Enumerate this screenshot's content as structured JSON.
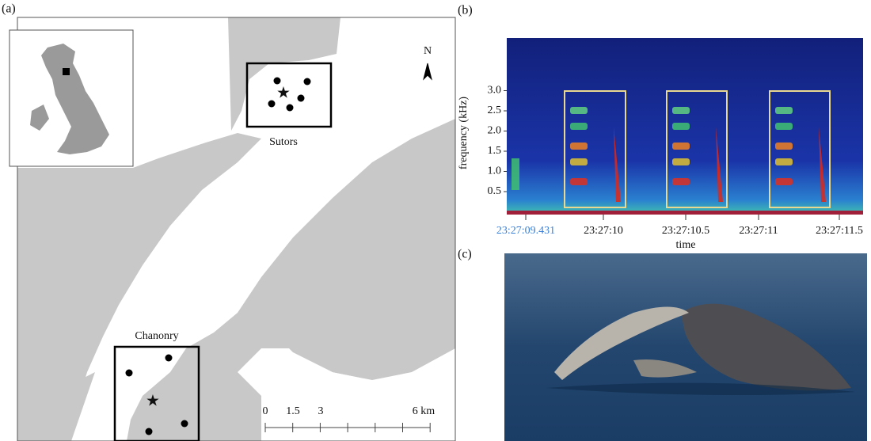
{
  "panel_a": {
    "label": "(a)",
    "north": "N",
    "sites": [
      "Sutors",
      "Chanonry"
    ],
    "scale_bar": [
      "0",
      "1.5",
      "3",
      "6 km"
    ]
  },
  "panel_b": {
    "label": "(b)",
    "y_label": "frequency (kHz)",
    "yticks": [
      "0.5",
      "1.0",
      "1.5",
      "2.0",
      "2.5",
      "3.0"
    ],
    "x_label": "time",
    "xticks": [
      "23:27:09.431",
      "23:27:10",
      "23:27:10.5",
      "23:27:11",
      "23:27:11.5"
    ]
  },
  "panel_c": {
    "label": "(c)"
  }
}
